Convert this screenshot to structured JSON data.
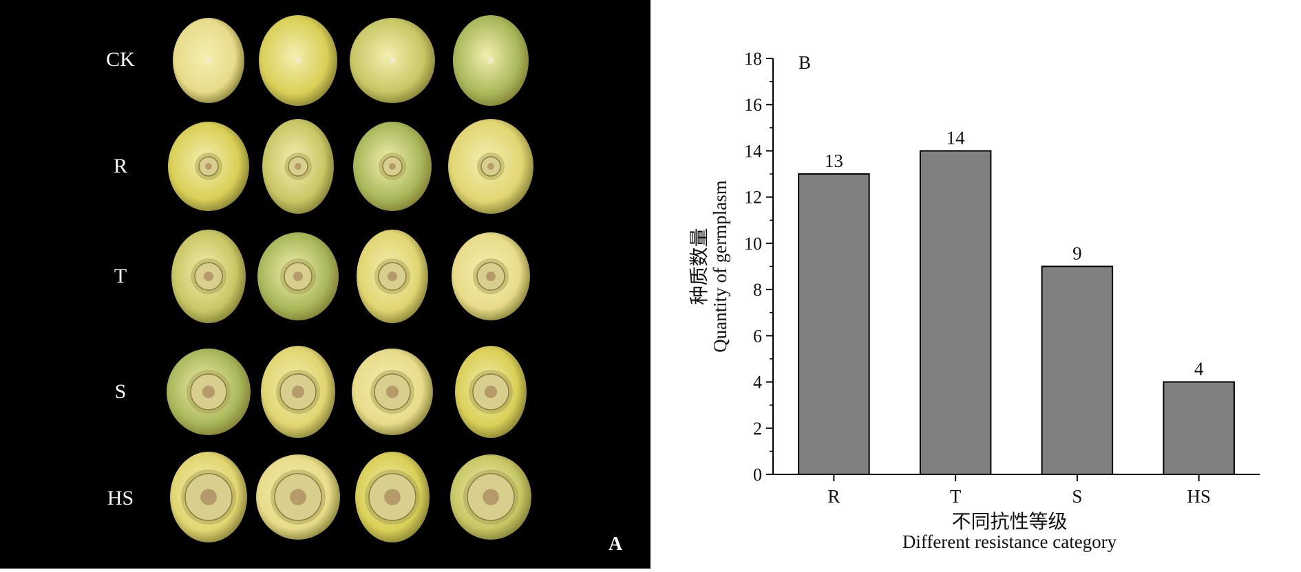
{
  "panel_a": {
    "label": "A",
    "rows": [
      {
        "label": "CK",
        "lesion": "none"
      },
      {
        "label": "R",
        "lesion": "small"
      },
      {
        "label": "T",
        "lesion": "medium"
      },
      {
        "label": "S",
        "lesion": "large"
      },
      {
        "label": "HS",
        "lesion": "very-large"
      }
    ],
    "fruit_colors": [
      "#e8dc8a",
      "#d9cf57",
      "#c8c766",
      "#a9b85a",
      "#e1d572"
    ],
    "background": "#000000"
  },
  "chart_data": {
    "type": "bar",
    "panel_label": "B",
    "categories": [
      "R",
      "T",
      "S",
      "HS"
    ],
    "values": [
      13,
      14,
      9,
      4
    ],
    "data_labels": [
      "13",
      "14",
      "9",
      "4"
    ],
    "ylim": [
      0,
      18
    ],
    "yticks": [
      0,
      2,
      4,
      6,
      8,
      10,
      12,
      14,
      16,
      18
    ],
    "ylabel_cn": "种质数量",
    "ylabel_en": "Quantity of germplasm",
    "xlabel_cn": "不同抗性等级",
    "xlabel_en": "Different resistance category",
    "bar_color": "#808080",
    "bar_edge": "#000000",
    "grid": false
  }
}
